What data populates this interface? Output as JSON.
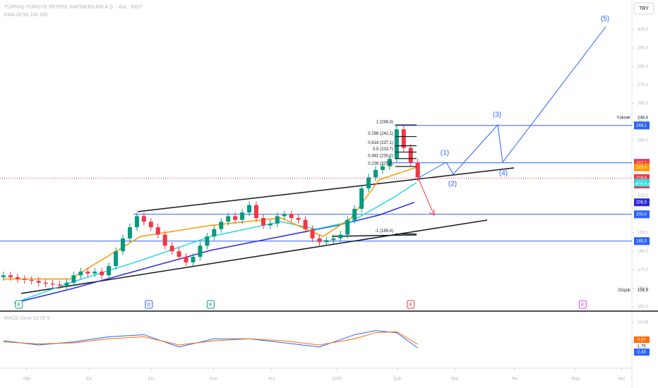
{
  "chart_data": {
    "type": "candlestick",
    "title": "TÜPRAŞ-TÜRKİYE PETROL RAFİNERİLERİ A.Ş. · 4sa · BIST",
    "subtitle": "EMA 20 50 100 200",
    "currency": "TRY",
    "open": [
      166,
      167,
      166,
      165,
      164.5,
      164,
      163,
      162.5,
      162,
      161.5,
      163,
      167,
      169,
      168,
      169,
      167,
      172,
      180,
      187,
      193,
      199,
      196,
      193,
      189,
      183,
      180,
      177,
      174,
      177,
      183,
      188,
      192,
      196,
      199,
      197,
      201,
      205,
      198,
      194,
      195,
      199,
      200,
      198,
      197,
      192,
      187,
      185,
      186,
      187,
      189,
      197,
      203,
      214,
      220,
      224,
      226,
      230,
      246,
      236,
      228
    ],
    "high": [
      169,
      169,
      168,
      167,
      166.5,
      166,
      165,
      164.5,
      164,
      165,
      169,
      171,
      171,
      171,
      171,
      174,
      182,
      189,
      195,
      201,
      201,
      198,
      195,
      191,
      185,
      182,
      179,
      179,
      185,
      190,
      194,
      198,
      201,
      201,
      203,
      207,
      207,
      200,
      197,
      201,
      202,
      202,
      200,
      199,
      194,
      189,
      188,
      189,
      191,
      199,
      205,
      216,
      222,
      226,
      228,
      232,
      248.4,
      248,
      238,
      230
    ],
    "low": [
      164,
      164,
      163,
      162.5,
      162,
      161,
      160.5,
      160,
      159.5,
      159.5,
      161,
      165,
      166,
      166,
      165,
      165,
      170,
      178,
      185,
      191,
      194,
      191,
      187,
      181,
      178,
      175,
      172,
      172,
      175,
      181,
      186,
      190,
      194,
      195,
      195,
      199,
      196,
      192,
      192,
      193,
      197,
      196,
      195,
      190,
      185,
      183,
      183,
      184,
      185,
      187,
      195,
      201,
      212,
      218,
      222,
      224,
      228,
      234,
      226,
      218
    ],
    "close": [
      167,
      166,
      165,
      164.5,
      164,
      163,
      162.5,
      162,
      161.5,
      163,
      167,
      169,
      168,
      169,
      167,
      172,
      180,
      187,
      193,
      199,
      196,
      193,
      189,
      183,
      180,
      177,
      174,
      177,
      183,
      188,
      192,
      196,
      199,
      197,
      201,
      205,
      198,
      194,
      195,
      199,
      200,
      198,
      197,
      192,
      187,
      185,
      186,
      187,
      189,
      197,
      203,
      214,
      220,
      224,
      226,
      230,
      246,
      236,
      228,
      220
    ],
    "up_color": "#089981",
    "down_color": "#f23645",
    "xlim": [
      -0.5,
      89.5
    ],
    "xticks": [
      {
        "value": 3.3,
        "label": "Ağu"
      },
      {
        "value": 12.2,
        "label": "Eyl"
      },
      {
        "value": 21,
        "label": "Eki"
      },
      {
        "value": 29.9,
        "label": "Kas"
      },
      {
        "value": 38.2,
        "label": "Ara"
      },
      {
        "value": 47.5,
        "label": "2026"
      },
      {
        "value": 56.1,
        "label": "Şub"
      },
      {
        "value": 64.3,
        "label": "Mar"
      },
      {
        "value": 72.8,
        "label": "Nis"
      },
      {
        "value": 81.5,
        "label": "May"
      },
      {
        "value": 88,
        "label": "Haz"
      }
    ],
    "ylim": [
      148,
      316
    ],
    "yticks": [
      {
        "value": 150,
        "label": "150,0"
      },
      {
        "value": 160,
        "label": "160,0"
      },
      {
        "value": 170,
        "label": "170,0"
      },
      {
        "value": 180,
        "label": "180,0"
      },
      {
        "value": 190,
        "label": "190,0"
      },
      {
        "value": 210,
        "label": "210,0"
      },
      {
        "value": 240,
        "label": "240,0"
      },
      {
        "value": 250,
        "label": "250,0"
      },
      {
        "value": 260,
        "label": "260,0"
      },
      {
        "value": 270,
        "label": "270,0"
      },
      {
        "value": 280,
        "label": "280,0"
      },
      {
        "value": 290,
        "label": "290,0"
      },
      {
        "value": 300,
        "label": "300,0"
      }
    ],
    "lines": [
      {
        "color": "#2a2ad8",
        "x": [
          1.5,
          9.5,
          19.5,
          29.5,
          39.5,
          47.5,
          53.5,
          58.5
        ],
        "values": [
          152,
          159.5,
          170,
          180.5,
          188,
          194,
          199.6,
          206.5
        ]
      },
      {
        "color": "#26d9e0",
        "x": [
          1.5,
          9.5,
          19.5,
          29.5,
          39.5,
          44.5,
          49.5,
          55.5,
          58.8
        ],
        "values": [
          152,
          163,
          175,
          188,
          196,
          192,
          196,
          209,
          217.1
        ]
      },
      {
        "color": "#ff9800",
        "x": [
          0,
          9.5,
          19.5,
          29.5,
          39.5,
          45.5,
          49.5,
          53.5,
          58.8
        ],
        "values": [
          165,
          165,
          188,
          194,
          198,
          188,
          198,
          218.7,
          225.4
        ]
      }
    ],
    "levels": [
      {
        "value": 248.1,
        "x0": 55.7
      },
      {
        "value": 227.9,
        "x0": 55.5
      },
      {
        "value": 200,
        "x0": 18.5
      },
      {
        "value": 185.5,
        "x0": -0.5
      }
    ],
    "level_color": "#2962ff",
    "fib_levels": [
      {
        "label": "1 (248,4)",
        "value": 248.4
      },
      {
        "label": "0,786 (242,1)",
        "value": 242.1
      },
      {
        "label": "0,618 (237,1)",
        "value": 237.1
      },
      {
        "label": "0,5 (233,7)",
        "value": 233.7
      },
      {
        "label": "0,382 (230,2)",
        "value": 230.2
      },
      {
        "label": "0,236 (225,9)",
        "value": 225.9
      },
      {
        "label": "-1 (189,4)",
        "value": 189.4
      }
    ],
    "waves": [
      "(1)",
      "(2)",
      "(3)",
      "(4)",
      "(5)"
    ],
    "price_tags": [
      {
        "label": "248,1",
        "value": 248.1,
        "color": "#2962ff"
      },
      {
        "label": "227,9",
        "value": 227.9,
        "color": "#2962ff"
      },
      {
        "label": "227,7",
        "value": 227.7,
        "color": "#f23645"
      },
      {
        "label": "225,4",
        "value": 225.4,
        "color": "#ff9800"
      },
      {
        "label": "219,6",
        "value": 219.6,
        "color": "#f23645"
      },
      {
        "label": "217,1",
        "value": 217.1,
        "color": "#26d9e0"
      },
      {
        "label": "206,5",
        "value": 206.5,
        "color": "#2a2ad8"
      },
      {
        "label": "200,0",
        "value": 200,
        "color": "#2962ff"
      },
      {
        "label": "185,5",
        "value": 185.5,
        "color": "#2962ff"
      }
    ],
    "countdown": "01:01:11",
    "high_label": {
      "label": "Yüksek",
      "value_label": "248,4",
      "value": 248.4
    },
    "low_label": {
      "label": "Düşük",
      "value_label": "158,9",
      "value": 158.9
    },
    "events": [
      {
        "label": "E",
        "x": 2.2,
        "color": "#089981"
      },
      {
        "label": "D",
        "x": 20.7,
        "color": "#2962ff"
      },
      {
        "label": "E",
        "x": 29.5,
        "color": "#089981"
      },
      {
        "label": "E",
        "x": 58,
        "color": "#f23645"
      },
      {
        "label": "E",
        "x": 82.5,
        "color": "#e040fb"
      }
    ],
    "macd": {
      "title": "MACD close 12 26 9",
      "ylim": [
        -12.4,
        15.2
      ],
      "yticks": [
        {
          "value": 10,
          "label": "10,00"
        },
        {
          "value": 0,
          "label": "0,00"
        }
      ],
      "x": [
        0,
        5,
        10,
        15,
        20,
        25,
        30,
        35,
        40,
        45,
        50,
        53,
        56,
        59
      ],
      "macd": [
        1,
        -1,
        0.5,
        3,
        4,
        -2,
        2,
        2,
        0,
        -2,
        4,
        6,
        5,
        -2.43
      ],
      "signal": [
        0.5,
        -0.5,
        0,
        2,
        3,
        -1,
        1,
        2,
        1,
        -1,
        2,
        5,
        5.5,
        -0.67
      ],
      "macd_color": "#2962ff",
      "signal_color": "#ff6d00",
      "tags": [
        {
          "label": "-0,67",
          "value": -0.67,
          "color": "#ff6d00"
        },
        {
          "label": "-1,76",
          "value": -1.76,
          "color": "#ffffff"
        },
        {
          "label": "-2,43",
          "value": -2.43,
          "color": "#2962ff"
        }
      ]
    }
  }
}
